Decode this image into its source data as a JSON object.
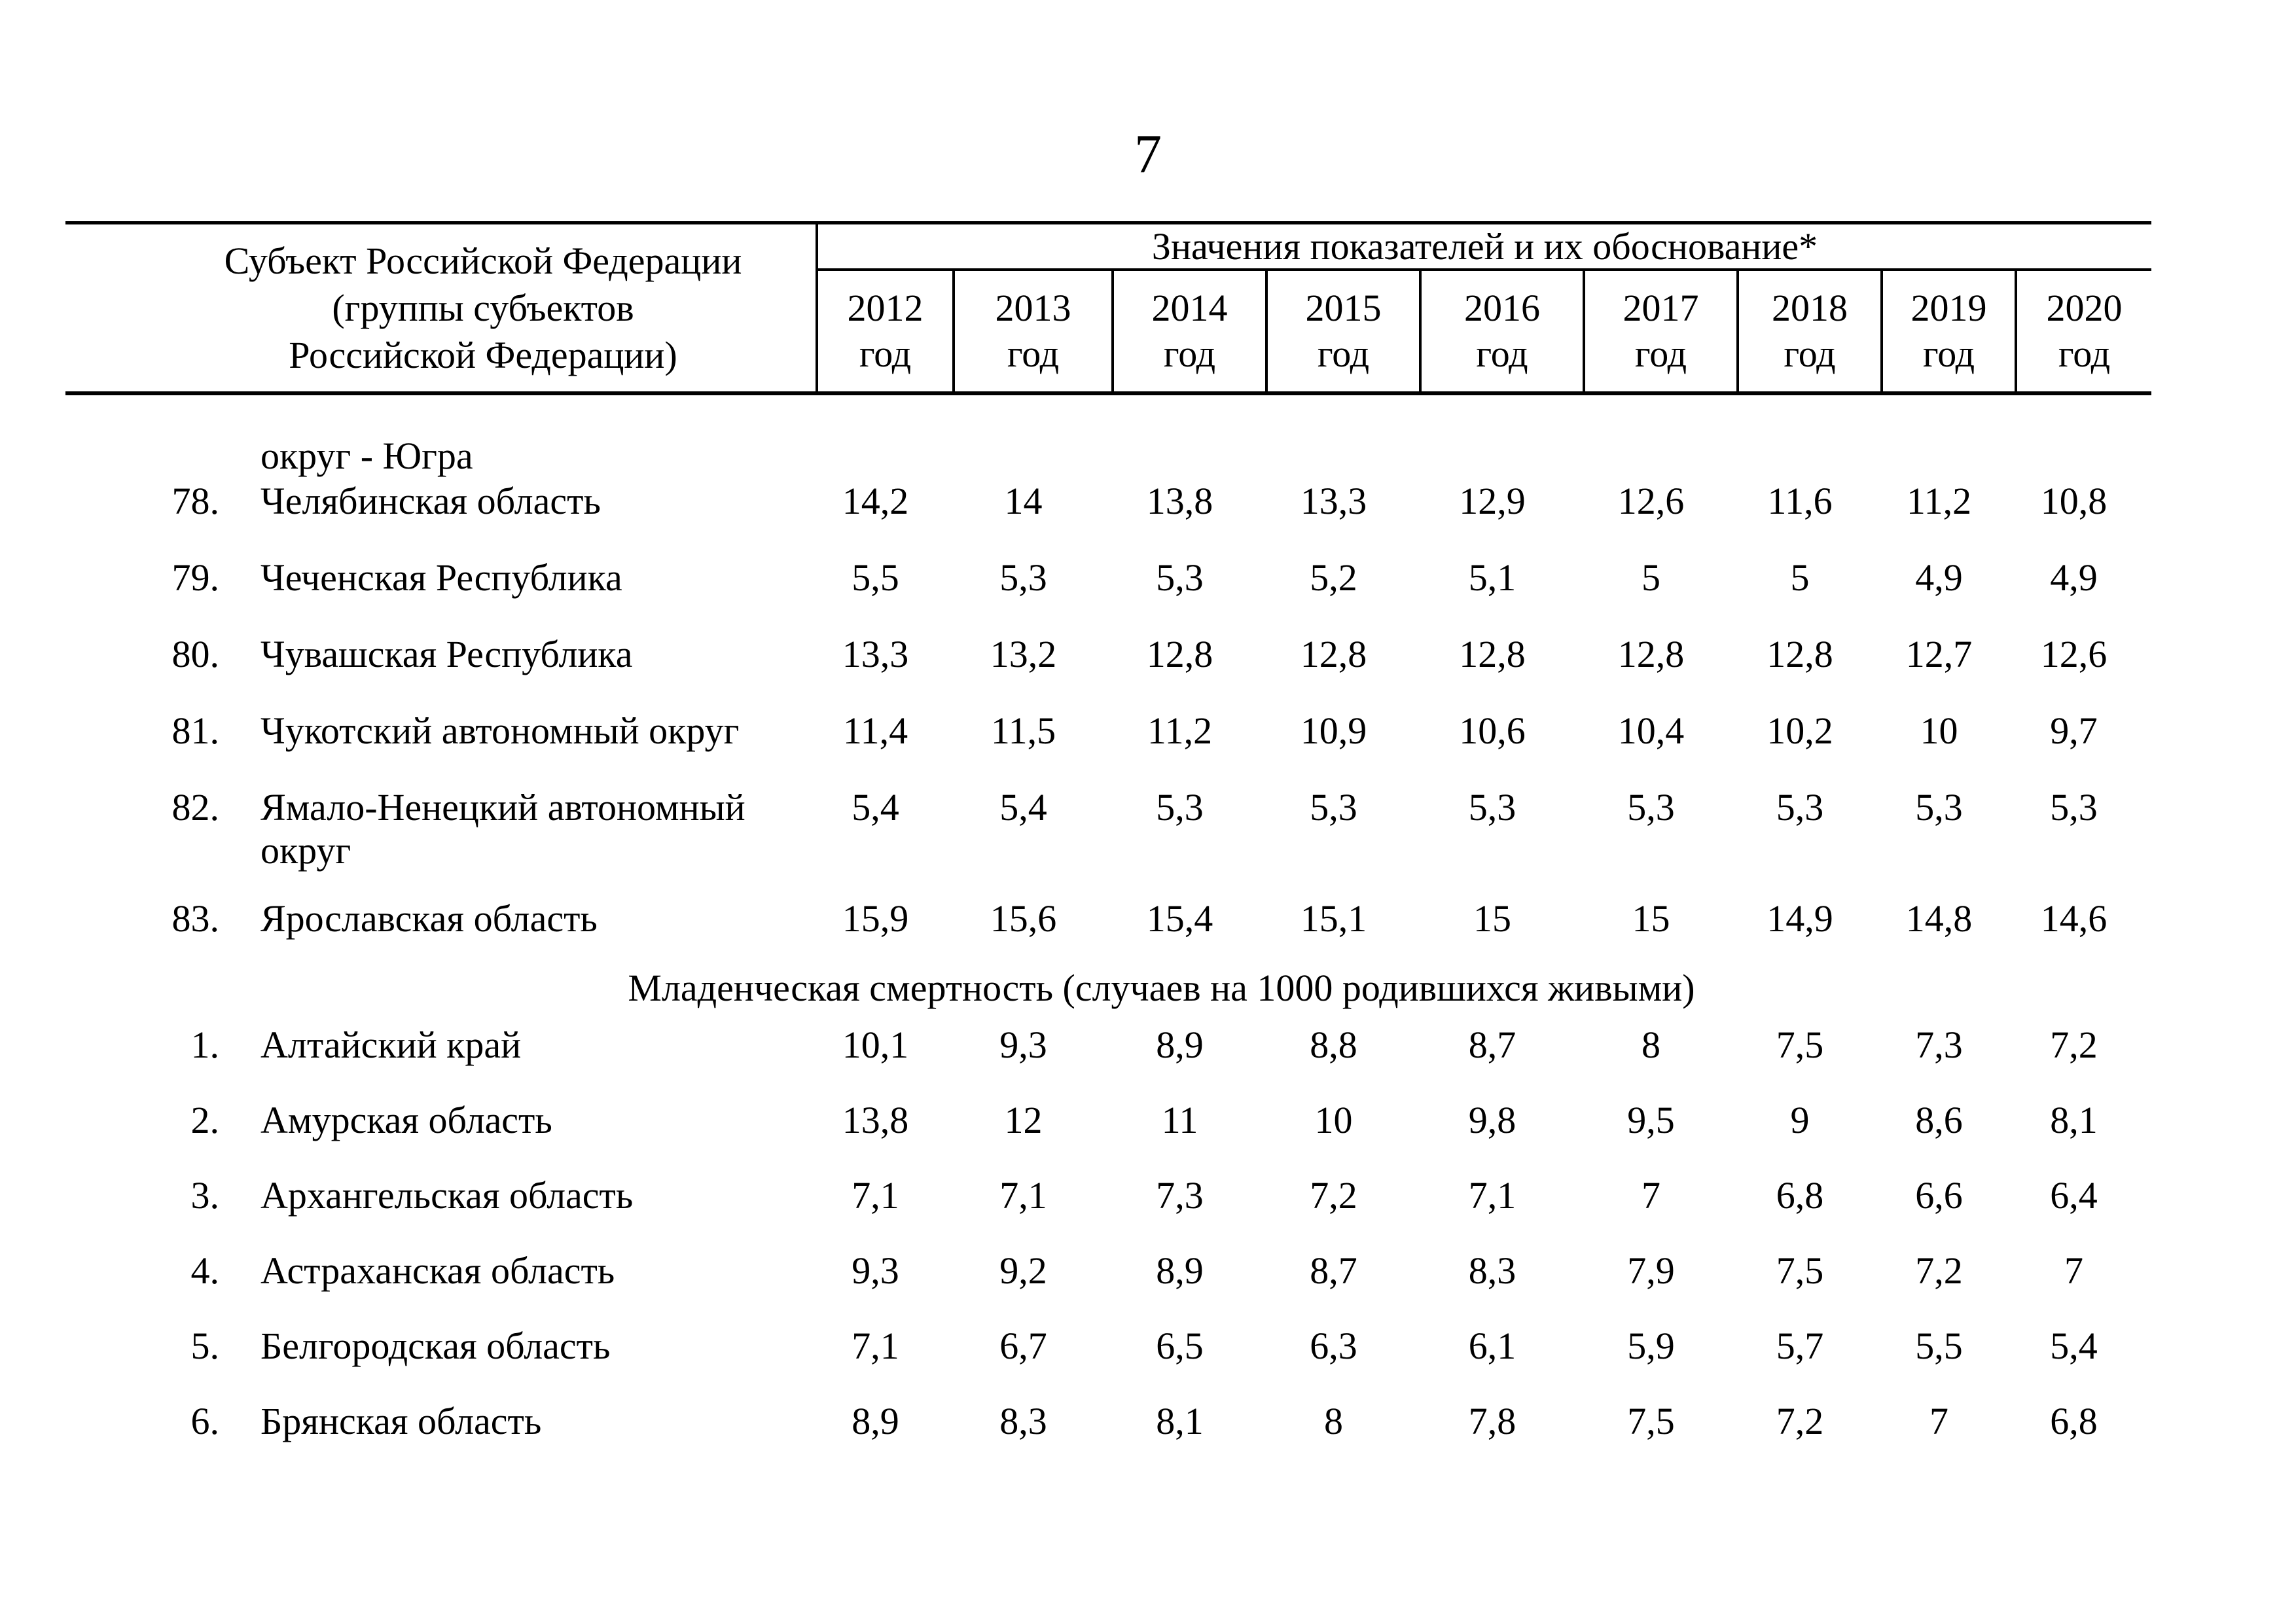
{
  "page": {
    "number": "7"
  },
  "table": {
    "header": {
      "subject_label": "Субъект Российской Федерации\n(группы субъектов\nРоссийской Федерации)",
      "values_group_label": "Значения показателей и их обоснование*",
      "year_columns": [
        "2012\nгод",
        "2013\nгод",
        "2014\nгод",
        "2015\nгод",
        "2016\nгод",
        "2017\nгод",
        "2018\nгод",
        "2019\nгод",
        "2020\nгод"
      ]
    },
    "rows": [
      {
        "type": "continuation",
        "name": "округ - Югра"
      },
      {
        "type": "data",
        "num": "78.",
        "name": "Челябинская область",
        "values": [
          "14,2",
          "14",
          "13,8",
          "13,3",
          "12,9",
          "12,6",
          "11,6",
          "11,2",
          "10,8"
        ]
      },
      {
        "type": "data",
        "num": "79.",
        "name": "Чеченская Республика",
        "values": [
          "5,5",
          "5,3",
          "5,3",
          "5,2",
          "5,1",
          "5",
          "5",
          "4,9",
          "4,9"
        ]
      },
      {
        "type": "data",
        "num": "80.",
        "name": "Чувашская Республика",
        "values": [
          "13,3",
          "13,2",
          "12,8",
          "12,8",
          "12,8",
          "12,8",
          "12,8",
          "12,7",
          "12,6"
        ]
      },
      {
        "type": "data",
        "num": "81.",
        "name": "Чукотский автономный округ",
        "values": [
          "11,4",
          "11,5",
          "11,2",
          "10,9",
          "10,6",
          "10,4",
          "10,2",
          "10",
          "9,7"
        ]
      },
      {
        "type": "data",
        "num": "82.",
        "name": "Ямало-Ненецкий автономный округ",
        "values": [
          "5,4",
          "5,4",
          "5,3",
          "5,3",
          "5,3",
          "5,3",
          "5,3",
          "5,3",
          "5,3"
        ]
      },
      {
        "type": "data",
        "num": "83.",
        "name": "Ярославская область",
        "values": [
          "15,9",
          "15,6",
          "15,4",
          "15,1",
          "15",
          "15",
          "14,9",
          "14,8",
          "14,6"
        ]
      },
      {
        "type": "section",
        "title": "Младенческая смертность (случаев на 1000 родившихся живыми)"
      },
      {
        "type": "data",
        "num": "1.",
        "name": "Алтайский край",
        "values": [
          "10,1",
          "9,3",
          "8,9",
          "8,8",
          "8,7",
          "8",
          "7,5",
          "7,3",
          "7,2"
        ]
      },
      {
        "type": "data",
        "num": "2.",
        "name": "Амурская область",
        "values": [
          "13,8",
          "12",
          "11",
          "10",
          "9,8",
          "9,5",
          "9",
          "8,6",
          "8,1"
        ]
      },
      {
        "type": "data",
        "num": "3.",
        "name": "Архангельская область",
        "values": [
          "7,1",
          "7,1",
          "7,3",
          "7,2",
          "7,1",
          "7",
          "6,8",
          "6,6",
          "6,4"
        ]
      },
      {
        "type": "data",
        "num": "4.",
        "name": "Астраханская область",
        "values": [
          "9,3",
          "9,2",
          "8,9",
          "8,7",
          "8,3",
          "7,9",
          "7,5",
          "7,2",
          "7"
        ]
      },
      {
        "type": "data",
        "num": "5.",
        "name": "Белгородская область",
        "values": [
          "7,1",
          "6,7",
          "6,5",
          "6,3",
          "6,1",
          "5,9",
          "5,7",
          "5,5",
          "5,4"
        ]
      },
      {
        "type": "data",
        "num": "6.",
        "name": "Брянская область",
        "values": [
          "8,9",
          "8,3",
          "8,1",
          "8",
          "7,8",
          "7,5",
          "7,2",
          "7",
          "6,8"
        ]
      }
    ]
  }
}
